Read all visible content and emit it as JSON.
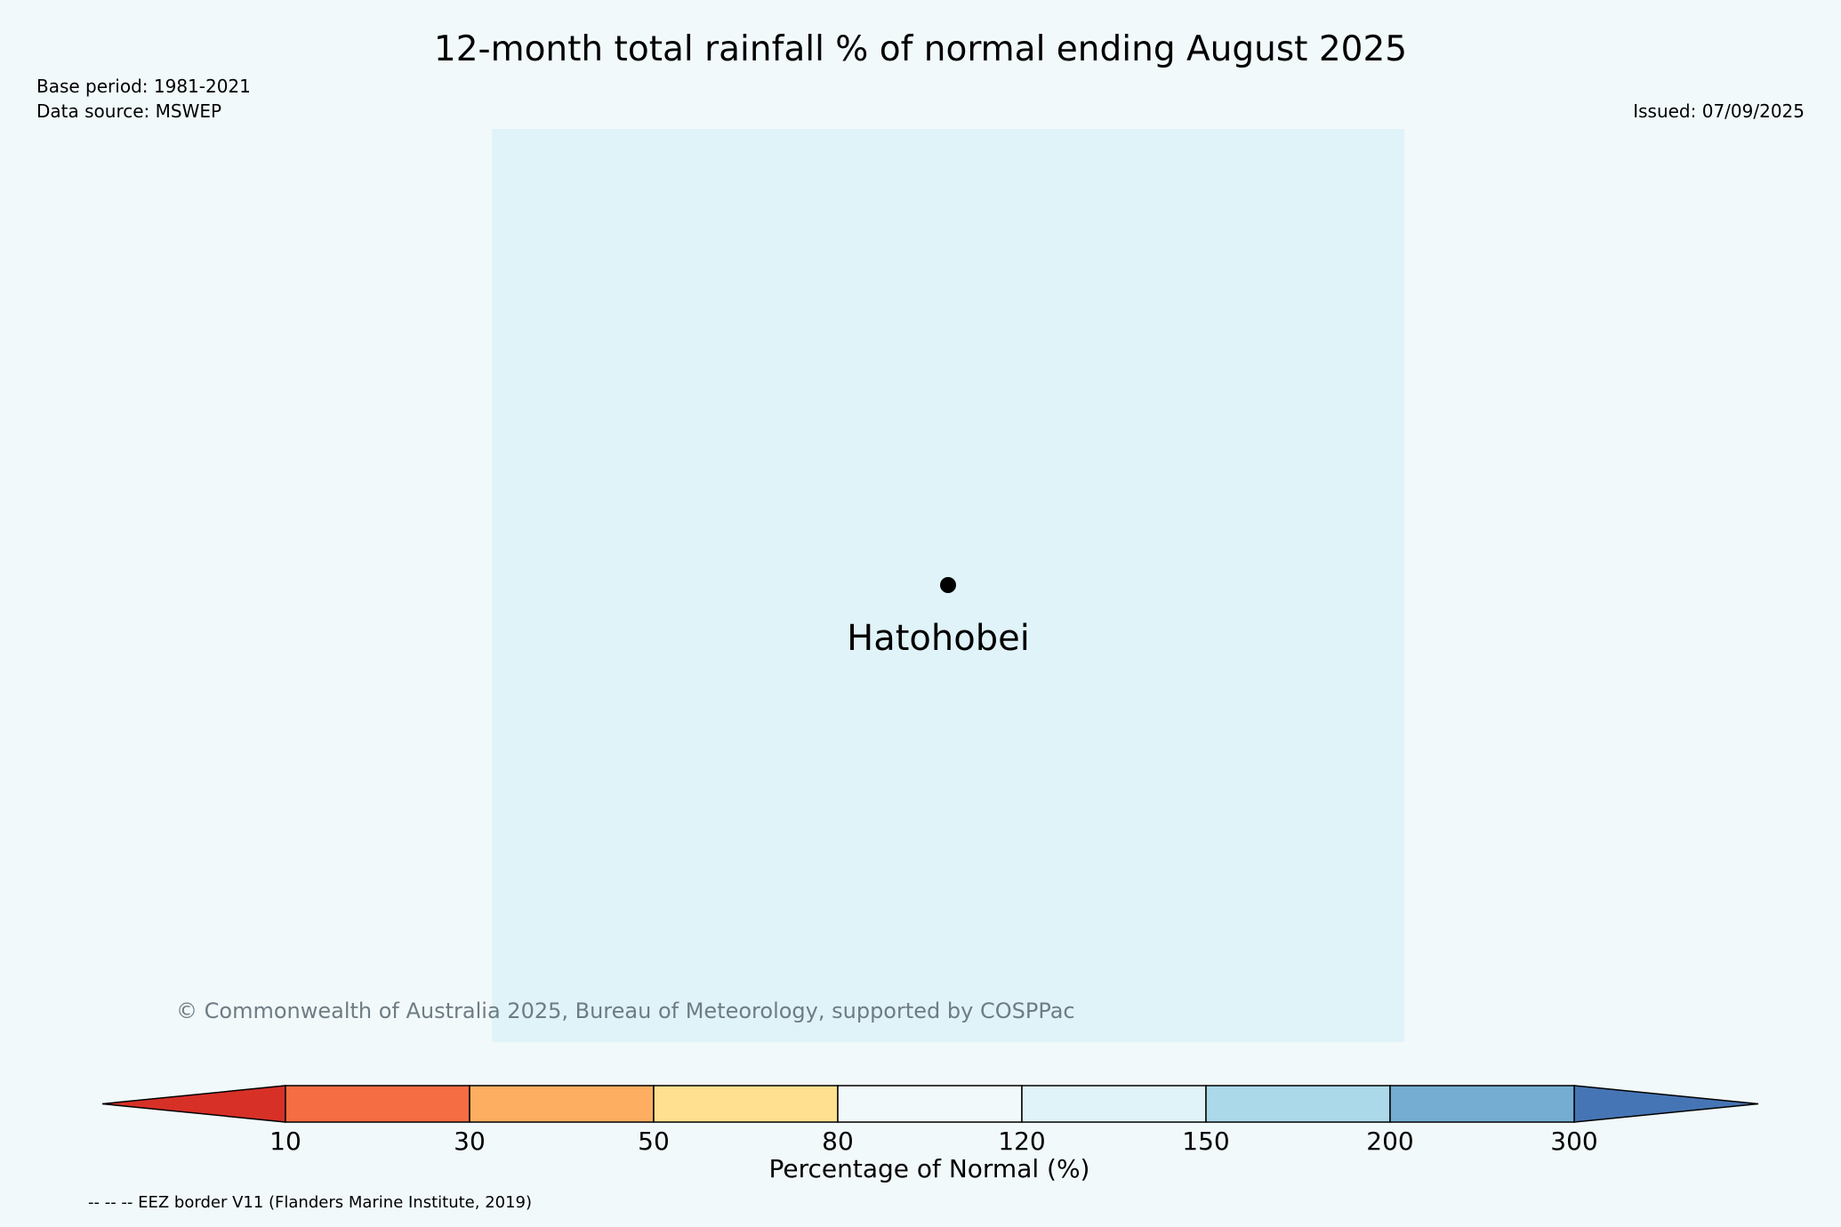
{
  "title": "12-month total rainfall % of normal ending August 2025",
  "meta": {
    "base_period": "Base period: 1981-2021",
    "data_source": "Data source: MSWEP",
    "issued": "Issued: 07/09/2025"
  },
  "map": {
    "background_color": "#e0f3f8",
    "place": {
      "name": "Hatohobei"
    }
  },
  "copyright": "© Commonwealth of Australia 2025, Bureau of Meteorology, supported by COSPPac",
  "colorbar": {
    "label": "Percentage of Normal (%)",
    "ticks": [
      "10",
      "30",
      "50",
      "80",
      "120",
      "150",
      "200",
      "300"
    ],
    "low_extend_color": "#d73027",
    "high_extend_color": "#4575b4",
    "segment_colors": [
      "#f46d43",
      "#fdae61",
      "#fee090",
      "#f2f9fb",
      "#e0f3f8",
      "#abd9e9",
      "#74add1"
    ]
  },
  "footnote": "-- -- -- EEZ border V11 (Flanders Marine Institute, 2019)"
}
